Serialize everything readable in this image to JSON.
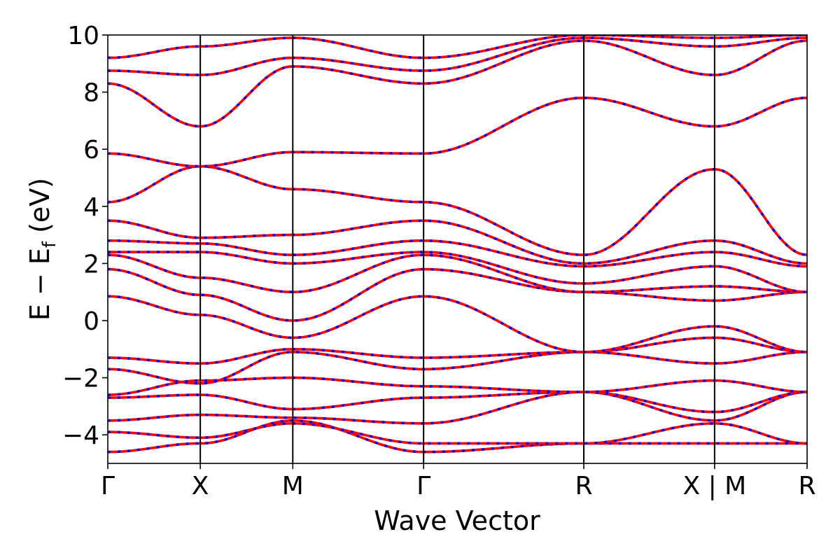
{
  "chart_data": {
    "type": "line",
    "xlabel": "Wave Vector",
    "ylabel_main": "E − E",
    "ylabel_sub": "f",
    "ylabel_unit": "(eV)",
    "ylim": [
      -5,
      10
    ],
    "yticks": [
      -4,
      -2,
      0,
      2,
      4,
      6,
      8,
      10
    ],
    "ytick_labels": [
      "−4",
      "−2",
      "0",
      "2",
      "4",
      "6",
      "8",
      "10"
    ],
    "grid": false,
    "colors": {
      "series_solid": "#ff0000",
      "series_dashed": "#0000ff",
      "axes": "#000000"
    },
    "kpath": [
      {
        "label": "Γ",
        "x": 0.0
      },
      {
        "label": "X",
        "x": 0.5
      },
      {
        "label": "M",
        "x": 1.0
      },
      {
        "label": "Γ",
        "x": 1.707
      },
      {
        "label": "R",
        "x": 2.573
      },
      {
        "label": "X | M",
        "x": 3.28
      },
      {
        "label": "R",
        "x": 3.78
      }
    ],
    "xlim": [
      0,
      3.78
    ],
    "series": [
      {
        "values": [
          [
            0.0,
            -4.6
          ],
          [
            0.5,
            -4.3
          ],
          [
            1.0,
            -3.5
          ],
          [
            1.707,
            -4.6
          ],
          [
            2.573,
            -4.3
          ],
          [
            3.28,
            -4.3
          ],
          [
            3.78,
            -4.3
          ]
        ]
      },
      {
        "values": [
          [
            0.0,
            -3.9
          ],
          [
            0.5,
            -4.1
          ],
          [
            1.0,
            -3.6
          ],
          [
            1.707,
            -4.3
          ],
          [
            2.573,
            -4.3
          ],
          [
            3.28,
            -3.6
          ],
          [
            3.78,
            -4.3
          ]
        ]
      },
      {
        "values": [
          [
            0.0,
            -3.5
          ],
          [
            0.5,
            -3.3
          ],
          [
            1.0,
            -3.4
          ],
          [
            1.707,
            -3.6
          ],
          [
            2.573,
            -2.5
          ],
          [
            3.28,
            -3.5
          ],
          [
            3.78,
            -2.5
          ]
        ]
      },
      {
        "values": [
          [
            0.0,
            -2.7
          ],
          [
            0.5,
            -2.6
          ],
          [
            1.0,
            -3.1
          ],
          [
            1.707,
            -2.7
          ],
          [
            2.573,
            -2.5
          ],
          [
            3.28,
            -3.2
          ],
          [
            3.78,
            -2.5
          ]
        ]
      },
      {
        "values": [
          [
            0.0,
            -2.6
          ],
          [
            0.5,
            -2.1
          ],
          [
            1.0,
            -2.0
          ],
          [
            1.707,
            -2.3
          ],
          [
            2.573,
            -2.5
          ],
          [
            3.28,
            -2.1
          ],
          [
            3.78,
            -2.5
          ]
        ]
      },
      {
        "values": [
          [
            0.0,
            -1.7
          ],
          [
            0.5,
            -2.2
          ],
          [
            1.0,
            -1.1
          ],
          [
            1.707,
            -1.7
          ],
          [
            2.573,
            -1.1
          ],
          [
            3.28,
            -1.5
          ],
          [
            3.78,
            -1.1
          ]
        ]
      },
      {
        "values": [
          [
            0.0,
            -1.3
          ],
          [
            0.5,
            -1.5
          ],
          [
            1.0,
            -1.0
          ],
          [
            1.707,
            -1.3
          ],
          [
            2.573,
            -1.1
          ],
          [
            3.28,
            -0.6
          ],
          [
            3.78,
            -1.1
          ]
        ]
      },
      {
        "values": [
          [
            0.0,
            0.85
          ],
          [
            0.5,
            0.2
          ],
          [
            1.0,
            -0.6
          ],
          [
            1.707,
            0.85
          ],
          [
            2.573,
            -1.1
          ],
          [
            3.28,
            -0.2
          ],
          [
            3.78,
            -1.1
          ]
        ]
      },
      {
        "values": [
          [
            0.0,
            1.8
          ],
          [
            0.5,
            0.9
          ],
          [
            1.0,
            0.0
          ],
          [
            1.707,
            1.8
          ],
          [
            2.573,
            1.0
          ],
          [
            3.28,
            0.7
          ],
          [
            3.78,
            1.0
          ]
        ]
      },
      {
        "values": [
          [
            0.0,
            2.3
          ],
          [
            0.5,
            1.5
          ],
          [
            1.0,
            1.0
          ],
          [
            1.707,
            2.3
          ],
          [
            2.573,
            1.0
          ],
          [
            3.28,
            1.2
          ],
          [
            3.78,
            1.0
          ]
        ]
      },
      {
        "values": [
          [
            0.0,
            2.4
          ],
          [
            0.5,
            2.4
          ],
          [
            1.0,
            2.0
          ],
          [
            1.707,
            2.4
          ],
          [
            2.573,
            1.3
          ],
          [
            3.28,
            1.9
          ],
          [
            3.78,
            1.0
          ]
        ]
      },
      {
        "values": [
          [
            0.0,
            2.8
          ],
          [
            0.5,
            2.7
          ],
          [
            1.0,
            2.3
          ],
          [
            1.707,
            2.8
          ],
          [
            2.573,
            1.9
          ],
          [
            3.28,
            2.4
          ],
          [
            3.78,
            1.9
          ]
        ]
      },
      {
        "values": [
          [
            0.0,
            3.5
          ],
          [
            0.5,
            2.9
          ],
          [
            1.0,
            3.0
          ],
          [
            1.707,
            3.5
          ],
          [
            2.573,
            2.0
          ],
          [
            3.28,
            2.8
          ],
          [
            3.78,
            2.0
          ]
        ]
      },
      {
        "values": [
          [
            0.0,
            4.15
          ],
          [
            0.5,
            5.4
          ],
          [
            1.0,
            4.6
          ],
          [
            1.707,
            4.15
          ],
          [
            2.573,
            2.3
          ],
          [
            3.28,
            5.3
          ],
          [
            3.78,
            2.3
          ]
        ]
      },
      {
        "values": [
          [
            0.0,
            5.85
          ],
          [
            0.5,
            5.4
          ],
          [
            1.0,
            5.9
          ],
          [
            1.707,
            5.85
          ],
          [
            2.573,
            7.8
          ],
          [
            3.28,
            6.8
          ],
          [
            3.78,
            7.8
          ]
        ]
      },
      {
        "values": [
          [
            0.0,
            8.3
          ],
          [
            0.5,
            6.8
          ],
          [
            1.0,
            8.9
          ],
          [
            1.707,
            8.3
          ],
          [
            2.573,
            9.8
          ],
          [
            3.28,
            8.6
          ],
          [
            3.78,
            9.8
          ]
        ]
      },
      {
        "values": [
          [
            0.0,
            8.75
          ],
          [
            0.5,
            8.6
          ],
          [
            1.0,
            9.2
          ],
          [
            1.707,
            8.75
          ],
          [
            2.573,
            9.9
          ],
          [
            3.28,
            9.6
          ],
          [
            3.78,
            9.9
          ]
        ]
      },
      {
        "values": [
          [
            0.0,
            9.2
          ],
          [
            0.5,
            9.6
          ],
          [
            1.0,
            9.9
          ],
          [
            1.707,
            9.2
          ],
          [
            2.573,
            10.0
          ],
          [
            3.28,
            9.9
          ],
          [
            3.78,
            10.0
          ]
        ]
      }
    ]
  }
}
